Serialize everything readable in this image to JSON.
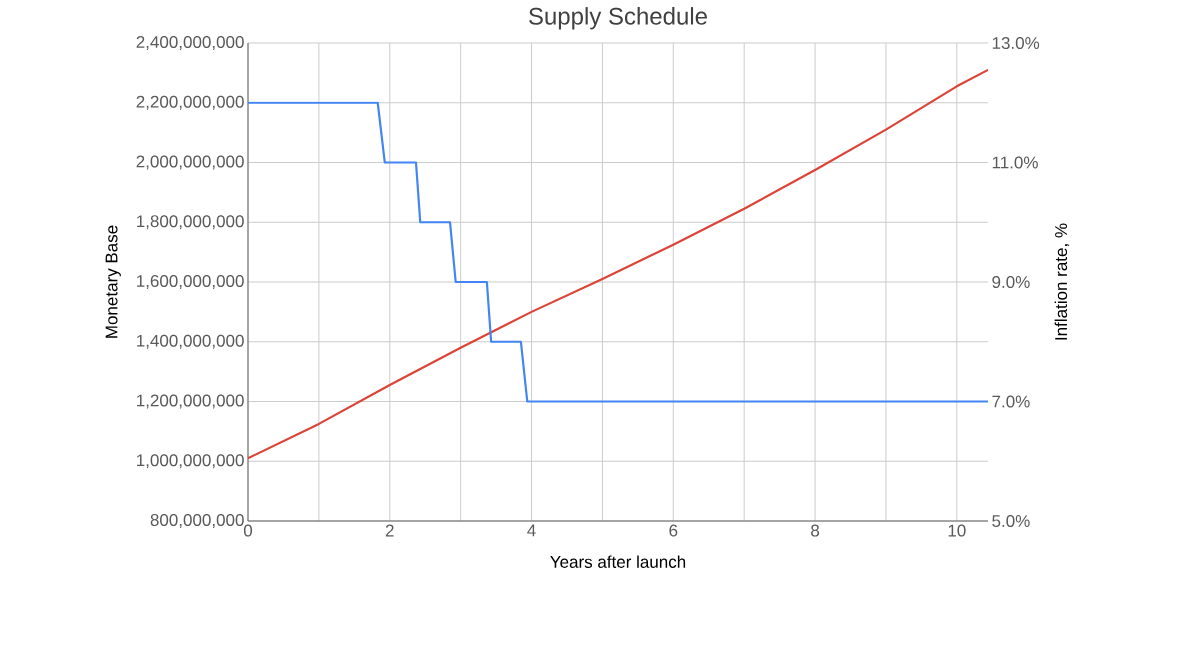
{
  "chart_data": {
    "type": "line",
    "title": "Supply Schedule",
    "xlabel": "Years after launch",
    "ylabel": "Monetary Base",
    "y2label": "Inflation rate, %",
    "xlim": [
      0,
      10.44
    ],
    "xticks": [
      0,
      {
        "value": 1,
        "label": null
      },
      2,
      {
        "value": 3,
        "label": null
      },
      4,
      {
        "value": 5,
        "label": null
      },
      6,
      {
        "value": 7,
        "label": null
      },
      8,
      {
        "value": 9,
        "label": null
      },
      10
    ],
    "ylim": [
      800000000,
      2400000000
    ],
    "yticks": [
      {
        "value": 800000000,
        "label": "800,000,000"
      },
      {
        "value": 1000000000,
        "label": "1,000,000,000"
      },
      {
        "value": 1200000000,
        "label": "1,200,000,000"
      },
      {
        "value": 1400000000,
        "label": "1,400,000,000"
      },
      {
        "value": 1600000000,
        "label": "1,600,000,000"
      },
      {
        "value": 1800000000,
        "label": "1,800,000,000"
      },
      {
        "value": 2000000000,
        "label": "2,000,000,000"
      },
      {
        "value": 2200000000,
        "label": "2,200,000,000"
      },
      {
        "value": 2400000000,
        "label": "2,400,000,000"
      }
    ],
    "y2lim": [
      5,
      13
    ],
    "y2ticks": [
      {
        "value": 5,
        "label": "5.0%"
      },
      {
        "value": 7,
        "label": "7.0%"
      },
      {
        "value": 9,
        "label": "9.0%"
      },
      {
        "value": 11,
        "label": "11.0%"
      },
      {
        "value": 13,
        "label": "13.0%"
      }
    ],
    "grid": true,
    "series": [
      {
        "color": "#db4437",
        "x": [
          0,
          1,
          2,
          3,
          4,
          5,
          6,
          7,
          8,
          9,
          10,
          10.44
        ],
        "values": [
          1010000000,
          1125000000,
          1255000000,
          1380000000,
          1500000000,
          1610000000,
          1725000000,
          1845000000,
          1975000000,
          2110000000,
          2255000000,
          2310000000
        ]
      },
      {
        "color": "#4285f4",
        "axis": "y2",
        "x": [
          0,
          1.83,
          1.93,
          2.37,
          2.43,
          2.85,
          2.93,
          3.37,
          3.43,
          3.85,
          3.94,
          10.44
        ],
        "values": [
          12,
          12,
          11,
          11,
          10,
          10,
          9,
          9,
          8,
          8,
          7,
          7
        ]
      }
    ]
  }
}
